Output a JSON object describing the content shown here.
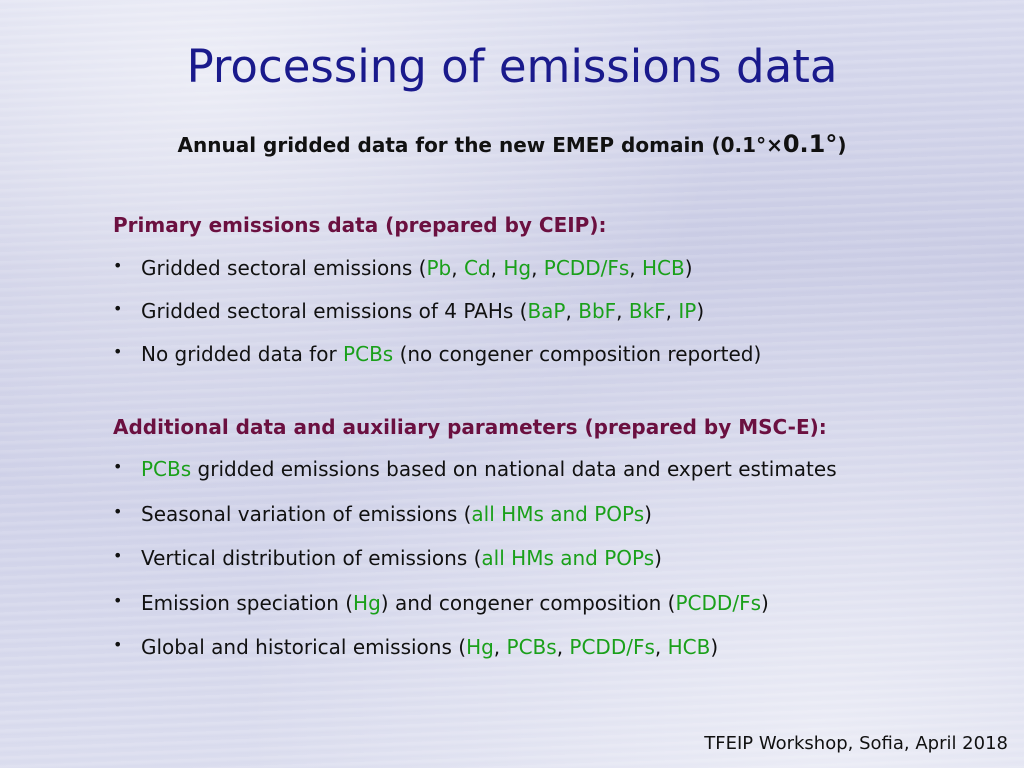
{
  "slide": {
    "title": "Processing of emissions data",
    "subtitle_pre": "Annual gridded data for the new EMEP domain (0.1°×",
    "subtitle_big": "0.1°",
    "subtitle_post": ")",
    "primary": {
      "heading": "Primary emissions data (prepared by CEIP):",
      "items": [
        [
          {
            "t": "Gridded sectoral emissions (",
            "g": false
          },
          {
            "t": "Pb",
            "g": true
          },
          {
            "t": ", ",
            "g": false
          },
          {
            "t": "Cd",
            "g": true
          },
          {
            "t": ", ",
            "g": false
          },
          {
            "t": "Hg",
            "g": true
          },
          {
            "t": ", ",
            "g": false
          },
          {
            "t": "PCDD/Fs",
            "g": true
          },
          {
            "t": ", ",
            "g": false
          },
          {
            "t": "HCB",
            "g": true
          },
          {
            "t": ")",
            "g": false
          }
        ],
        [
          {
            "t": "Gridded sectoral emissions of 4 PAHs (",
            "g": false
          },
          {
            "t": "BaP",
            "g": true
          },
          {
            "t": ", ",
            "g": false
          },
          {
            "t": "BbF",
            "g": true
          },
          {
            "t": ", ",
            "g": false
          },
          {
            "t": "BkF",
            "g": true
          },
          {
            "t": ", ",
            "g": false
          },
          {
            "t": "IP",
            "g": true
          },
          {
            "t": ")",
            "g": false
          }
        ],
        [
          {
            "t": "No gridded data for ",
            "g": false
          },
          {
            "t": "PCBs",
            "g": true
          },
          {
            "t": " (no congener composition reported)",
            "g": false
          }
        ]
      ]
    },
    "additional": {
      "heading": "Additional data and auxiliary parameters (prepared by MSC-E):",
      "items": [
        [
          {
            "t": "PCBs",
            "g": true
          },
          {
            "t": " gridded emissions based on national data and expert estimates",
            "g": false
          }
        ],
        [
          {
            "t": "Seasonal variation of emissions (",
            "g": false
          },
          {
            "t": "all HMs and POPs",
            "g": true
          },
          {
            "t": ")",
            "g": false
          }
        ],
        [
          {
            "t": "Vertical distribution of emissions (",
            "g": false
          },
          {
            "t": "all HMs and POPs",
            "g": true
          },
          {
            "t": ")",
            "g": false
          }
        ],
        [
          {
            "t": "Emission speciation (",
            "g": false
          },
          {
            "t": "Hg",
            "g": true
          },
          {
            "t": ") and congener composition (",
            "g": false
          },
          {
            "t": "PCDD/Fs",
            "g": true
          },
          {
            "t": ")",
            "g": false
          }
        ],
        [
          {
            "t": "Global and historical emissions (",
            "g": false
          },
          {
            "t": "Hg",
            "g": true
          },
          {
            "t": ", ",
            "g": false
          },
          {
            "t": "PCBs",
            "g": true
          },
          {
            "t": ", ",
            "g": false
          },
          {
            "t": "PCDD/Fs",
            "g": true
          },
          {
            "t": ", ",
            "g": false
          },
          {
            "t": "HCB",
            "g": true
          },
          {
            "t": ")",
            "g": false
          }
        ]
      ]
    },
    "bullet_glyph": "•",
    "footer": "TFEIP Workshop, Sofia, April 2018",
    "colors": {
      "title": "#1a1a8c",
      "heading": "#6b1040",
      "highlight": "#1aa01a",
      "text": "#111111"
    }
  }
}
